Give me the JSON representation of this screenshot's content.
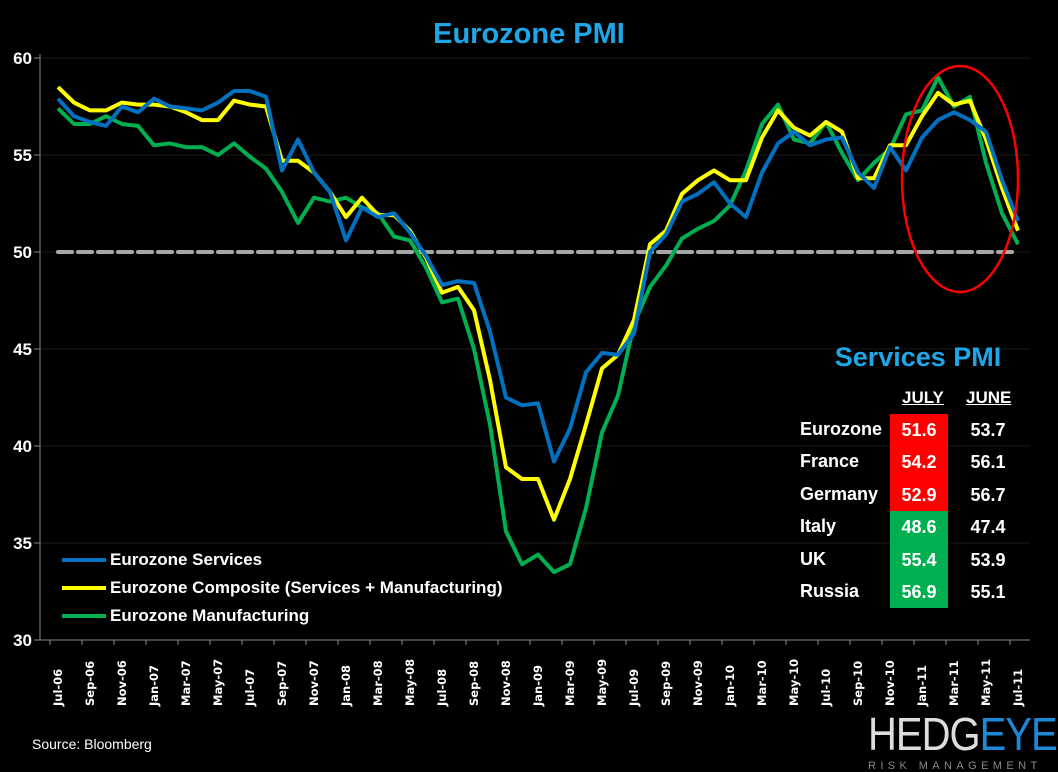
{
  "chart_data": {
    "type": "line",
    "title": "Eurozone PMI",
    "ylim": [
      30,
      60
    ],
    "yticks": [
      30,
      35,
      40,
      45,
      50,
      55,
      60
    ],
    "grid": true,
    "reference_line": 50,
    "legend_placement": "bottom-left",
    "x": [
      "Jul-06",
      "Aug-06",
      "Sep-06",
      "Oct-06",
      "Nov-06",
      "Dec-06",
      "Jan-07",
      "Feb-07",
      "Mar-07",
      "Apr-07",
      "May-07",
      "Jun-07",
      "Jul-07",
      "Aug-07",
      "Sep-07",
      "Oct-07",
      "Nov-07",
      "Dec-07",
      "Jan-08",
      "Feb-08",
      "Mar-08",
      "Apr-08",
      "May-08",
      "Jun-08",
      "Jul-08",
      "Aug-08",
      "Sep-08",
      "Oct-08",
      "Nov-08",
      "Dec-08",
      "Jan-09",
      "Feb-09",
      "Mar-09",
      "Apr-09",
      "May-09",
      "Jun-09",
      "Jul-09",
      "Aug-09",
      "Sep-09",
      "Oct-09",
      "Nov-09",
      "Dec-09",
      "Jan-10",
      "Feb-10",
      "Mar-10",
      "Apr-10",
      "May-10",
      "Jun-10",
      "Jul-10",
      "Aug-10",
      "Sep-10",
      "Oct-10",
      "Nov-10",
      "Dec-10",
      "Jan-11",
      "Feb-11",
      "Mar-11",
      "Apr-11",
      "May-11",
      "Jun-11",
      "Jul-11"
    ],
    "xtick_labels": [
      "Jul-06",
      "Sep-06",
      "Nov-06",
      "Jan-07",
      "Mar-07",
      "May-07",
      "Jul-07",
      "Sep-07",
      "Nov-07",
      "Jan-08",
      "Mar-08",
      "May-08",
      "Jul-08",
      "Sep-08",
      "Nov-08",
      "Jan-09",
      "Mar-09",
      "May-09",
      "Jul-09",
      "Sep-09",
      "Nov-09",
      "Jan-10",
      "Mar-10",
      "May-10",
      "Jul-10",
      "Sep-10",
      "Nov-10",
      "Jan-11",
      "Mar-11",
      "May-11",
      "Jul-11"
    ],
    "series": [
      {
        "name": "Eurozone Services",
        "color": "#0070c0",
        "values": [
          57.9,
          57.0,
          56.7,
          56.5,
          57.5,
          57.2,
          57.9,
          57.5,
          57.4,
          57.3,
          57.7,
          58.3,
          58.3,
          58.0,
          54.2,
          55.8,
          54.1,
          53.1,
          50.6,
          52.3,
          51.8,
          52.0,
          51.0,
          49.8,
          48.3,
          48.5,
          48.4,
          45.9,
          42.5,
          42.1,
          42.2,
          39.2,
          40.9,
          43.8,
          44.8,
          44.7,
          45.8,
          50.0,
          50.9,
          52.6,
          53.0,
          53.6,
          52.5,
          51.8,
          54.1,
          55.6,
          56.2,
          55.5,
          55.8,
          55.9,
          54.1,
          53.3,
          55.4,
          54.2,
          55.9,
          56.8,
          57.2,
          56.8,
          56.2,
          53.7,
          51.6
        ]
      },
      {
        "name": "Eurozone Composite (Services + Manufacturing)",
        "color": "#ffff00",
        "values": [
          58.5,
          57.7,
          57.3,
          57.3,
          57.7,
          57.6,
          57.6,
          57.5,
          57.2,
          56.8,
          56.8,
          57.8,
          57.6,
          57.5,
          54.7,
          54.7,
          54.1,
          53.1,
          51.8,
          52.8,
          51.9,
          51.9,
          51.1,
          49.7,
          47.9,
          48.2,
          47.0,
          43.4,
          38.9,
          38.3,
          38.3,
          36.2,
          38.3,
          41.1,
          44.0,
          44.7,
          46.5,
          50.4,
          51.1,
          53.0,
          53.7,
          54.2,
          53.7,
          53.7,
          55.9,
          57.3,
          56.4,
          56.0,
          56.7,
          56.2,
          53.8,
          53.8,
          55.5,
          55.5,
          57.0,
          58.2,
          57.6,
          57.8,
          55.8,
          53.3,
          51.1
        ]
      },
      {
        "name": "Eurozone Manufacturing",
        "color": "#00b050",
        "values": [
          57.4,
          56.6,
          56.6,
          57.0,
          56.6,
          56.5,
          55.5,
          55.6,
          55.4,
          55.4,
          55.0,
          55.6,
          54.9,
          54.3,
          53.1,
          51.5,
          52.8,
          52.6,
          52.8,
          52.3,
          52.0,
          50.8,
          50.6,
          49.2,
          47.4,
          47.6,
          45.0,
          41.1,
          35.6,
          33.9,
          34.4,
          33.5,
          33.9,
          36.8,
          40.7,
          42.6,
          46.3,
          48.2,
          49.3,
          50.7,
          51.2,
          51.6,
          52.4,
          54.2,
          56.6,
          57.6,
          55.8,
          55.6,
          56.7,
          55.1,
          53.7,
          54.6,
          55.3,
          57.1,
          57.3,
          59.0,
          57.5,
          58.0,
          54.6,
          52.0,
          50.4
        ]
      }
    ],
    "annotation_color": "#ff0000"
  },
  "table": {
    "title": "Services PMI",
    "headers": [
      "JULY",
      "JUNE"
    ],
    "colors": {
      "decline": "#ff0000",
      "improve": "#00b050"
    },
    "rows": [
      {
        "country": "Eurozone",
        "july": "51.6",
        "june": "53.7",
        "status": "decline"
      },
      {
        "country": "France",
        "july": "54.2",
        "june": "56.1",
        "status": "decline"
      },
      {
        "country": "Germany",
        "july": "52.9",
        "june": "56.7",
        "status": "decline"
      },
      {
        "country": "Italy",
        "july": "48.6",
        "june": "47.4",
        "status": "improve"
      },
      {
        "country": "UK",
        "july": "55.4",
        "june": "53.9",
        "status": "improve"
      },
      {
        "country": "Russia",
        "july": "56.9",
        "june": "55.1",
        "status": "improve"
      }
    ]
  },
  "source": "Source: Bloomberg",
  "logo": {
    "main_a": "HEDG",
    "main_b": "EYE",
    "sub": "RISK MANAGEMENT"
  }
}
